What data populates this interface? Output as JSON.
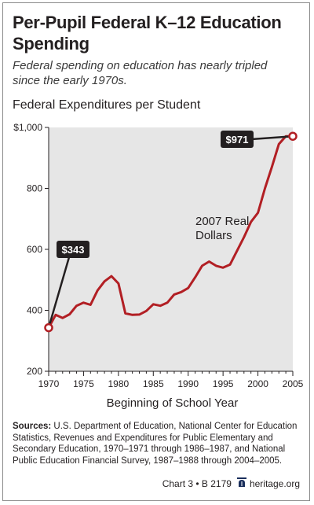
{
  "title": "Per-Pupil Federal K–12 Education Spending",
  "subtitle": "Federal spending on education has nearly tripled since the early 1970s.",
  "chart_heading": "Federal Expenditures per Student",
  "sources_label": "Sources:",
  "sources_text": "U.S. Department of Education, National Center for Education Statistics, Revenues and Expenditures for Public Elementary and Secondary Education, 1970–1971 through 1986–1987, and National Public Education Financial Survey, 1987–1988 through 2004–2005.",
  "footer": {
    "chart_ref": "Chart 3 • B 2179",
    "site": "heritage.org"
  },
  "colors": {
    "line": "#b21f24",
    "plot_bg": "#e6e6e6",
    "callout_bg": "#231f20",
    "text": "#231f20"
  },
  "chart_data": {
    "type": "line",
    "title": "Federal Expenditures per Student",
    "xlabel": "Beginning of School Year",
    "ylabel": "",
    "xlim": [
      1970,
      2005
    ],
    "ylim": [
      200,
      1000
    ],
    "x_ticks": [
      1970,
      1975,
      1980,
      1985,
      1990,
      1995,
      2000,
      2005
    ],
    "y_ticks": [
      200,
      400,
      600,
      800,
      1000
    ],
    "y_tick_labels": [
      "200",
      "400",
      "600",
      "800",
      "$1,000"
    ],
    "grid": false,
    "series": [
      {
        "name": "2007 Real Dollars",
        "x": [
          1970,
          1971,
          1972,
          1973,
          1974,
          1975,
          1976,
          1977,
          1978,
          1979,
          1980,
          1981,
          1982,
          1983,
          1984,
          1985,
          1986,
          1987,
          1988,
          1989,
          1990,
          1991,
          1992,
          1993,
          1994,
          1995,
          1996,
          1997,
          1998,
          1999,
          2000,
          2001,
          2002,
          2003,
          2004,
          2005
        ],
        "y": [
          343,
          385,
          375,
          387,
          415,
          425,
          418,
          465,
          495,
          512,
          488,
          390,
          385,
          386,
          398,
          420,
          415,
          425,
          452,
          460,
          473,
          508,
          546,
          560,
          546,
          540,
          550,
          595,
          640,
          690,
          720,
          800,
          870,
          945,
          971,
          971
        ]
      }
    ],
    "callouts": [
      {
        "label": "$343",
        "x": 1970,
        "y": 343
      },
      {
        "label": "$971",
        "x": 2005,
        "y": 971
      }
    ]
  }
}
